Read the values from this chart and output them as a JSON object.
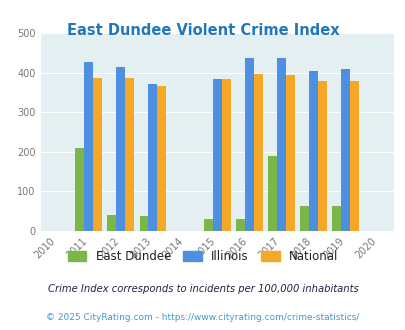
{
  "title": "East Dundee Violent Crime Index",
  "years": [
    2011,
    2012,
    2013,
    2015,
    2016,
    2017,
    2018,
    2019
  ],
  "east_dundee": [
    210,
    40,
    38,
    30,
    31,
    190,
    63,
    63
  ],
  "illinois": [
    428,
    413,
    372,
    383,
    438,
    438,
    405,
    408
  ],
  "national": [
    387,
    387,
    366,
    383,
    397,
    394,
    379,
    379
  ],
  "bar_colors": {
    "east_dundee": "#7ab648",
    "illinois": "#4d8fe0",
    "national": "#f5a828"
  },
  "bg_color": "#e4eff2",
  "ylim": [
    0,
    500
  ],
  "yticks": [
    0,
    100,
    200,
    300,
    400,
    500
  ],
  "xlim": [
    2009.5,
    2020.5
  ],
  "xticks": [
    2010,
    2011,
    2012,
    2013,
    2014,
    2015,
    2016,
    2017,
    2018,
    2019,
    2020
  ],
  "legend_labels": [
    "East Dundee",
    "Illinois",
    "National"
  ],
  "footnote1": "Crime Index corresponds to incidents per 100,000 inhabitants",
  "footnote2": "© 2025 CityRating.com - https://www.cityrating.com/crime-statistics/",
  "title_color": "#2277bb",
  "footnote1_color": "#222244",
  "footnote2_color": "#4499cc",
  "bar_width": 0.28
}
